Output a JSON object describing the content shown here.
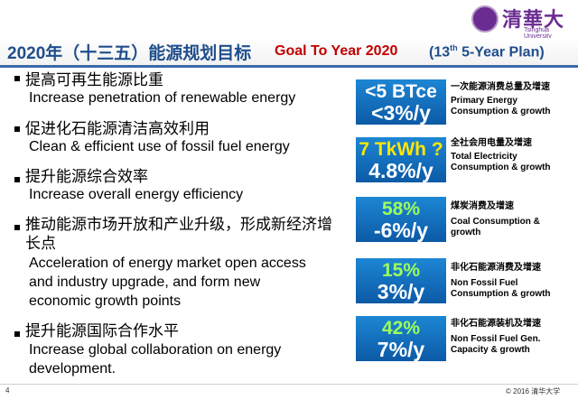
{
  "logo": {
    "cn": "清華大學",
    "en": "Tsinghua University"
  },
  "title": {
    "cn": "2020年（十三五）能源规划目标",
    "en": "Goal To Year 2020",
    "en_paren_pre": "(13",
    "en_sup": "th",
    "en_paren_post": " 5-Year Plan)"
  },
  "items": [
    {
      "cn": "提高可再生能源比重",
      "en": "Increase penetration of renewable energy"
    },
    {
      "cn": "促进化石能源清洁高效利用",
      "en": "Clean & efficient use of fossil fuel energy"
    },
    {
      "cn": "提升能源综合效率",
      "en": "Increase overall energy efficiency"
    },
    {
      "cn1": "推动能源市场开放和产业升级，形成新经济增",
      "cn2": "长点",
      "en1": "Acceleration of energy market open access",
      "en2": "and industry upgrade, and form new",
      "en3": "economic growth points"
    },
    {
      "cn": "提升能源国际合作水平",
      "en1": "Increase global collaboration on energy",
      "en2": "development."
    }
  ],
  "targets": [
    {
      "v1": "<5 BTce",
      "v2": "<3%/y",
      "cn": "一次能源消费总量及增速",
      "en1": "Primary Energy",
      "en2": "Consumption & growth"
    },
    {
      "v1": "7 TkWh ?",
      "v2": "4.8%/y",
      "cn": "全社会用电量及增速",
      "en1": "Total Electricity",
      "en2": "Consumption & growth"
    },
    {
      "v1": "58%",
      "v2": "-6%/y",
      "cn": "煤炭消费及增速",
      "en1": "Coal Consumption &",
      "en2": "growth"
    },
    {
      "v1": "15%",
      "v2": "3%/y",
      "cn": "非化石能源消费及增速",
      "en1": "Non Fossil Fuel",
      "en2": "Consumption & growth"
    },
    {
      "v1": "42%",
      "v2": "7%/y",
      "cn": "非化石能源装机及增速",
      "en1": "Non Fossil Fuel Gen.",
      "en2": "Capacity & growth"
    }
  ],
  "footer": {
    "page": "4",
    "copyright": "© 2016 清华大学"
  },
  "colors": {
    "title_blue": "#1f4e8c",
    "title_red": "#c00000",
    "box_blue": "#0c5aa6",
    "value_yellow": "#ffe600",
    "value_green": "#9cff5a"
  }
}
